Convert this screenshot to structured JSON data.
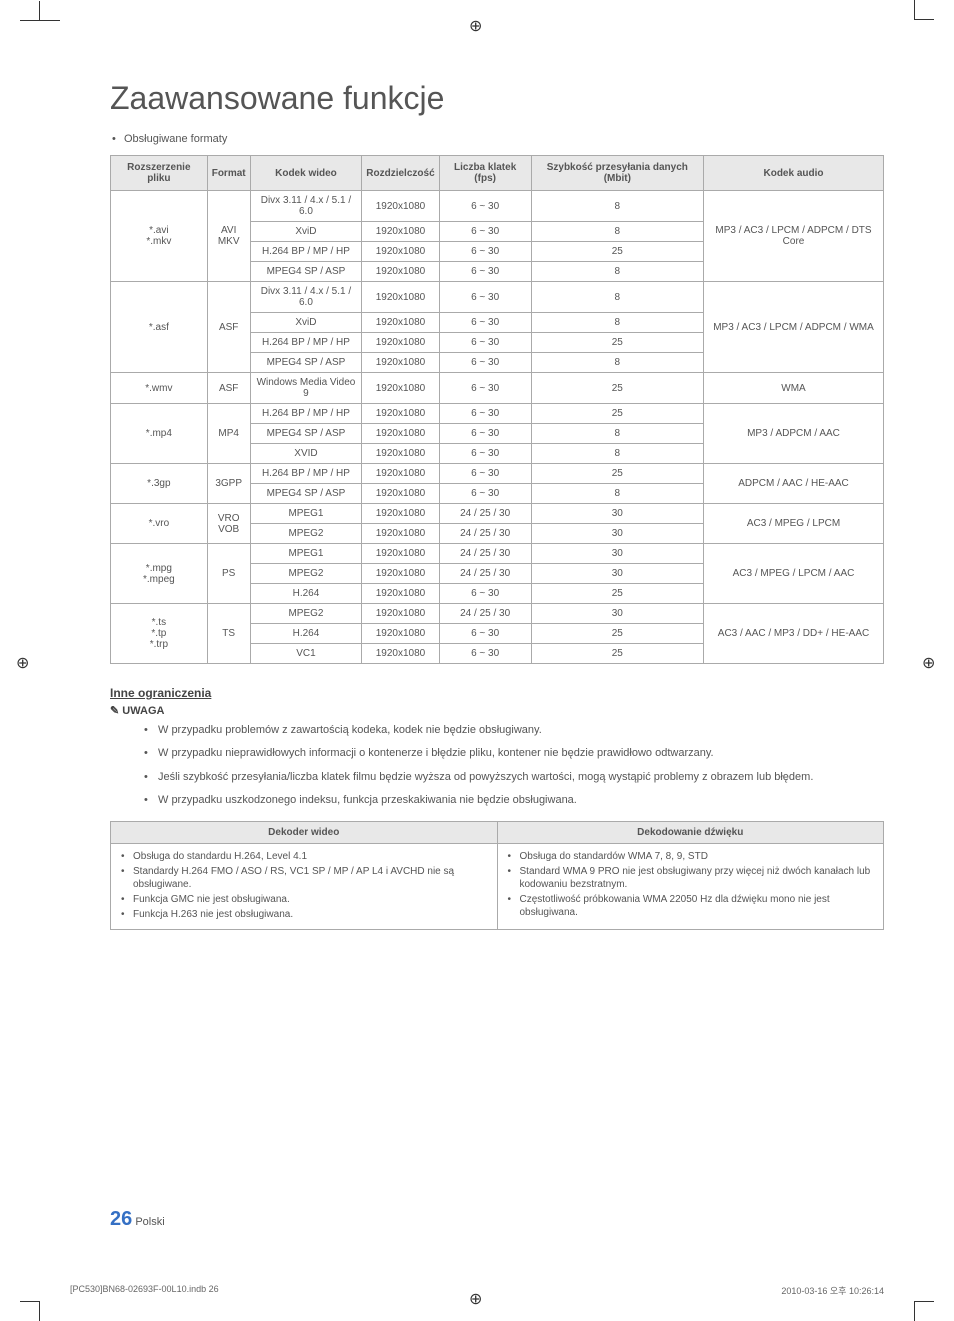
{
  "page_title": "Zaawansowane funkcje",
  "intro_bullet": "Obsługiwane formaty",
  "codec_table": {
    "headers": [
      "Rozszerzenie pliku",
      "Format",
      "Kodek wideo",
      "Rozdzielczość",
      "Liczba klatek (fps)",
      "Szybkość przesyłania danych (Mbit)",
      "Kodek audio"
    ],
    "groups": [
      {
        "ext": "*.avi\n*.mkv",
        "fmt": "AVI\nMKV",
        "rows": [
          {
            "codec": "Divx 3.11 / 4.x / 5.1 / 6.0",
            "res": "1920x1080",
            "fps": "6 ~ 30",
            "br": "8"
          },
          {
            "codec": "XviD",
            "res": "1920x1080",
            "fps": "6 ~ 30",
            "br": "8"
          },
          {
            "codec": "H.264 BP / MP / HP",
            "res": "1920x1080",
            "fps": "6 ~ 30",
            "br": "25"
          },
          {
            "codec": "MPEG4 SP / ASP",
            "res": "1920x1080",
            "fps": "6 ~ 30",
            "br": "8"
          }
        ],
        "audio": "MP3 / AC3 / LPCM / ADPCM / DTS Core"
      },
      {
        "ext": "*.asf",
        "fmt": "ASF",
        "rows": [
          {
            "codec": "Divx 3.11 / 4.x / 5.1 / 6.0",
            "res": "1920x1080",
            "fps": "6 ~ 30",
            "br": "8"
          },
          {
            "codec": "XviD",
            "res": "1920x1080",
            "fps": "6 ~ 30",
            "br": "8"
          },
          {
            "codec": "H.264 BP / MP / HP",
            "res": "1920x1080",
            "fps": "6 ~ 30",
            "br": "25"
          },
          {
            "codec": "MPEG4 SP / ASP",
            "res": "1920x1080",
            "fps": "6 ~ 30",
            "br": "8"
          }
        ],
        "audio": "MP3 / AC3 / LPCM / ADPCM / WMA"
      },
      {
        "ext": "*.wmv",
        "fmt": "ASF",
        "rows": [
          {
            "codec": "Windows Media Video 9",
            "res": "1920x1080",
            "fps": "6 ~ 30",
            "br": "25"
          }
        ],
        "audio": "WMA"
      },
      {
        "ext": "*.mp4",
        "fmt": "MP4",
        "rows": [
          {
            "codec": "H.264 BP / MP / HP",
            "res": "1920x1080",
            "fps": "6 ~ 30",
            "br": "25"
          },
          {
            "codec": "MPEG4 SP / ASP",
            "res": "1920x1080",
            "fps": "6 ~ 30",
            "br": "8"
          },
          {
            "codec": "XVID",
            "res": "1920x1080",
            "fps": "6 ~ 30",
            "br": "8"
          }
        ],
        "audio": "MP3 / ADPCM / AAC"
      },
      {
        "ext": "*.3gp",
        "fmt": "3GPP",
        "rows": [
          {
            "codec": "H.264 BP / MP / HP",
            "res": "1920x1080",
            "fps": "6 ~ 30",
            "br": "25"
          },
          {
            "codec": "MPEG4 SP / ASP",
            "res": "1920x1080",
            "fps": "6 ~ 30",
            "br": "8"
          }
        ],
        "audio": "ADPCM / AAC / HE-AAC"
      },
      {
        "ext": "*.vro",
        "fmt": "VRO\nVOB",
        "rows": [
          {
            "codec": "MPEG1",
            "res": "1920x1080",
            "fps": "24 / 25 / 30",
            "br": "30"
          },
          {
            "codec": "MPEG2",
            "res": "1920x1080",
            "fps": "24 / 25 / 30",
            "br": "30"
          }
        ],
        "audio": "AC3 / MPEG / LPCM"
      },
      {
        "ext": "*.mpg\n*.mpeg",
        "fmt": "PS",
        "rows": [
          {
            "codec": "MPEG1",
            "res": "1920x1080",
            "fps": "24 / 25 / 30",
            "br": "30"
          },
          {
            "codec": "MPEG2",
            "res": "1920x1080",
            "fps": "24 / 25 / 30",
            "br": "30"
          },
          {
            "codec": "H.264",
            "res": "1920x1080",
            "fps": "6 ~ 30",
            "br": "25"
          }
        ],
        "audio": "AC3 / MPEG / LPCM / AAC"
      },
      {
        "ext": "*.ts\n*.tp\n*.trp",
        "fmt": "TS",
        "rows": [
          {
            "codec": "MPEG2",
            "res": "1920x1080",
            "fps": "24 / 25 / 30",
            "br": "30"
          },
          {
            "codec": "H.264",
            "res": "1920x1080",
            "fps": "6 ~ 30",
            "br": "25"
          },
          {
            "codec": "VC1",
            "res": "1920x1080",
            "fps": "6 ~ 30",
            "br": "25"
          }
        ],
        "audio": "AC3 / AAC / MP3 / DD+ / HE-AAC"
      }
    ]
  },
  "other_limits_label": "Inne ograniczenia",
  "note_label": "UWAGA",
  "notes": [
    "W przypadku problemów z zawartością kodeka, kodek nie będzie obsługiwany.",
    "W przypadku nieprawidłowych informacji o kontenerze i błędzie pliku, kontener nie będzie prawidłowo odtwarzany.",
    "Jeśli szybkość przesyłania/liczba klatek filmu będzie wyższa od powyższych wartości, mogą wystąpić problemy z obrazem lub błędem.",
    "W przypadku uszkodzonego indeksu, funkcja przeskakiwania nie będzie obsługiwana."
  ],
  "decoder_table": {
    "headers": [
      "Dekoder wideo",
      "Dekodowanie dźwięku"
    ],
    "video": [
      "Obsługa do standardu H.264, Level 4.1",
      "Standardy H.264 FMO / ASO / RS, VC1 SP / MP / AP L4 i AVCHD nie są obsługiwane.",
      "Funkcja GMC nie jest obsługiwana.",
      "Funkcja H.263 nie jest obsługiwana."
    ],
    "audio": [
      "Obsługa do standardów WMA 7, 8, 9, STD",
      "Standard WMA 9 PRO nie jest obsługiwany przy więcej niż dwóch kanałach lub kodowaniu bezstratnym.",
      "Częstotliwość próbkowania WMA 22050 Hz dla dźwięku mono nie jest obsługiwana."
    ]
  },
  "footer": {
    "pagenum": "26",
    "lang": "Polski"
  },
  "print_footer": {
    "file": "[PC530]BN68-02693F-00L10.indb   26",
    "timestamp": "2010-03-16   오후 10:26:14"
  }
}
